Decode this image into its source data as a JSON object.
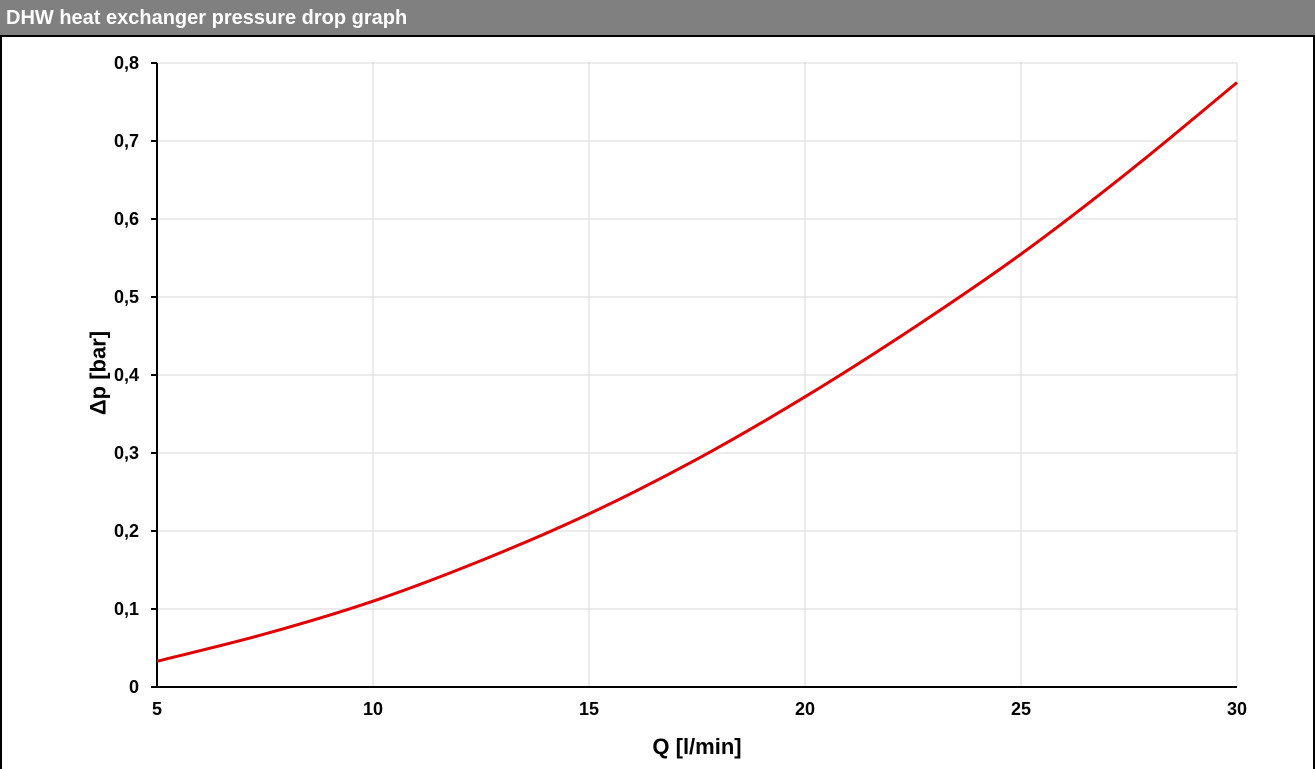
{
  "window": {
    "title": "DHW heat exchanger pressure drop graph"
  },
  "chart_data": {
    "type": "line",
    "title": "",
    "xlabel": "Q [l/min]",
    "ylabel": "Δp [bar]",
    "xlim": [
      5,
      30
    ],
    "ylim": [
      0,
      0.8
    ],
    "xticks": [
      5,
      10,
      15,
      20,
      25,
      30
    ],
    "yticks": [
      0,
      0.1,
      0.2,
      0.3,
      0.4,
      0.5,
      0.6,
      0.7,
      0.8
    ],
    "xtick_labels": [
      "5",
      "10",
      "15",
      "20",
      "25",
      "30"
    ],
    "ytick_labels": [
      "0",
      "0,1",
      "0,2",
      "0,3",
      "0,4",
      "0,5",
      "0,6",
      "0,7",
      "0,8"
    ],
    "grid": true,
    "line_color": "#e00000",
    "series": [
      {
        "x": [
          5,
          7.5,
          10,
          12.5,
          15,
          17.5,
          20,
          22.5,
          25,
          27.5,
          30
        ],
        "y": [
          0.033,
          0.068,
          0.11,
          0.162,
          0.222,
          0.292,
          0.372,
          0.46,
          0.555,
          0.661,
          0.775
        ]
      }
    ]
  }
}
